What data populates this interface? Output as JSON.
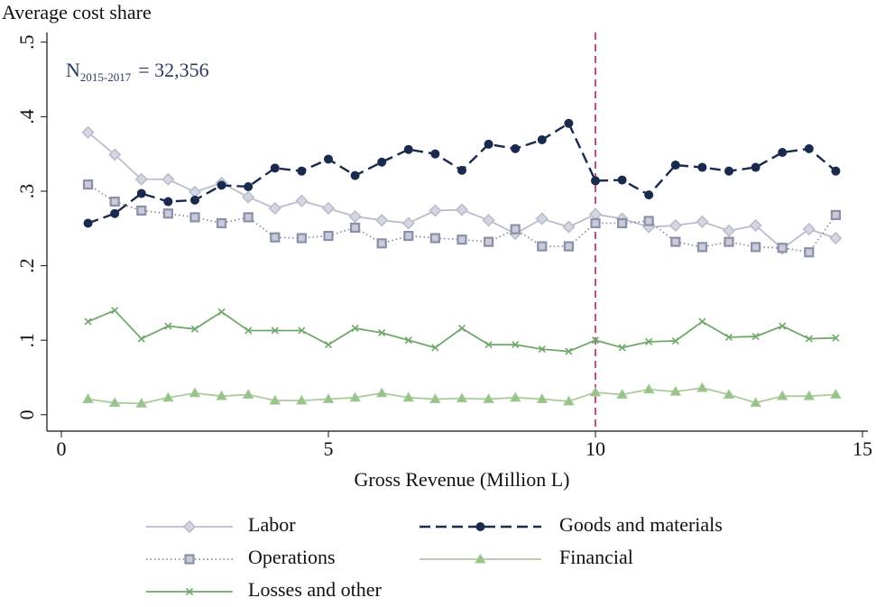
{
  "chart_data": {
    "type": "line",
    "y_axis_title": "Average cost share",
    "x_axis_title": "Gross Revenue (Million L)",
    "annotation": {
      "main": "N",
      "subscript": "2015-2017",
      "rest": "= 32,356"
    },
    "x": [
      0.5,
      1,
      1.5,
      2,
      2.5,
      3,
      3.5,
      4,
      4.5,
      5,
      5.5,
      6,
      6.5,
      7,
      7.5,
      8,
      8.5,
      9,
      9.5,
      10,
      10.5,
      11,
      11.5,
      12,
      12.5,
      13,
      13.5,
      14,
      14.5
    ],
    "series": [
      {
        "name": "Labor",
        "color": "#b9bdcc",
        "marker": "diamond",
        "dash": "solid",
        "values": [
          0.379,
          0.349,
          0.316,
          0.316,
          0.299,
          0.311,
          0.292,
          0.277,
          0.287,
          0.277,
          0.266,
          0.261,
          0.257,
          0.274,
          0.275,
          0.261,
          0.243,
          0.263,
          0.252,
          0.269,
          0.263,
          0.252,
          0.254,
          0.259,
          0.247,
          0.254,
          0.223,
          0.249,
          0.237
        ]
      },
      {
        "name": "Goods and materials",
        "color": "#1a2a4f",
        "marker": "circle",
        "dash": "dashed",
        "values": [
          0.257,
          0.27,
          0.297,
          0.286,
          0.288,
          0.308,
          0.306,
          0.331,
          0.327,
          0.343,
          0.321,
          0.339,
          0.356,
          0.35,
          0.328,
          0.363,
          0.357,
          0.369,
          0.391,
          0.314,
          0.315,
          0.295,
          0.335,
          0.332,
          0.327,
          0.332,
          0.352,
          0.357,
          0.327
        ]
      },
      {
        "name": "Operations",
        "color": "#8a90a8",
        "marker": "square",
        "dash": "dotted",
        "values": [
          0.309,
          0.286,
          0.274,
          0.27,
          0.265,
          0.257,
          0.265,
          0.238,
          0.237,
          0.24,
          0.251,
          0.23,
          0.24,
          0.237,
          0.235,
          0.232,
          0.249,
          0.226,
          0.226,
          0.257,
          0.257,
          0.26,
          0.232,
          0.225,
          0.232,
          0.225,
          0.224,
          0.218,
          0.268
        ]
      },
      {
        "name": "Financial",
        "color": "#a9cc9c",
        "marker": "triangle",
        "dash": "solid",
        "values": [
          0.021,
          0.016,
          0.015,
          0.023,
          0.029,
          0.025,
          0.027,
          0.019,
          0.019,
          0.021,
          0.023,
          0.029,
          0.023,
          0.021,
          0.022,
          0.021,
          0.023,
          0.021,
          0.018,
          0.03,
          0.027,
          0.034,
          0.031,
          0.036,
          0.027,
          0.016,
          0.025,
          0.025,
          0.027
        ]
      },
      {
        "name": "Losses and other",
        "color": "#6fa86a",
        "marker": "x",
        "dash": "solid",
        "values": [
          0.125,
          0.14,
          0.102,
          0.119,
          0.115,
          0.138,
          0.113,
          0.113,
          0.113,
          0.094,
          0.116,
          0.11,
          0.1,
          0.09,
          0.116,
          0.094,
          0.094,
          0.088,
          0.085,
          0.1,
          0.09,
          0.098,
          0.099,
          0.125,
          0.104,
          0.105,
          0.119,
          0.102,
          0.103
        ]
      }
    ],
    "vline": {
      "x": 10,
      "color": "#c83872"
    },
    "xlim": [
      -0.27,
      15
    ],
    "ylim": [
      -0.022,
      0.513
    ],
    "xticks": [
      0,
      5,
      10,
      15
    ],
    "yticks": [
      0,
      {
        "value": 0.1,
        "label": ".1"
      },
      {
        "value": 0.2,
        "label": ".2"
      },
      {
        "value": 0.3,
        "label": ".3"
      },
      {
        "value": 0.4,
        "label": ".4"
      },
      {
        "value": 0.5,
        "label": ".5"
      }
    ],
    "legend_position": "bottom"
  }
}
